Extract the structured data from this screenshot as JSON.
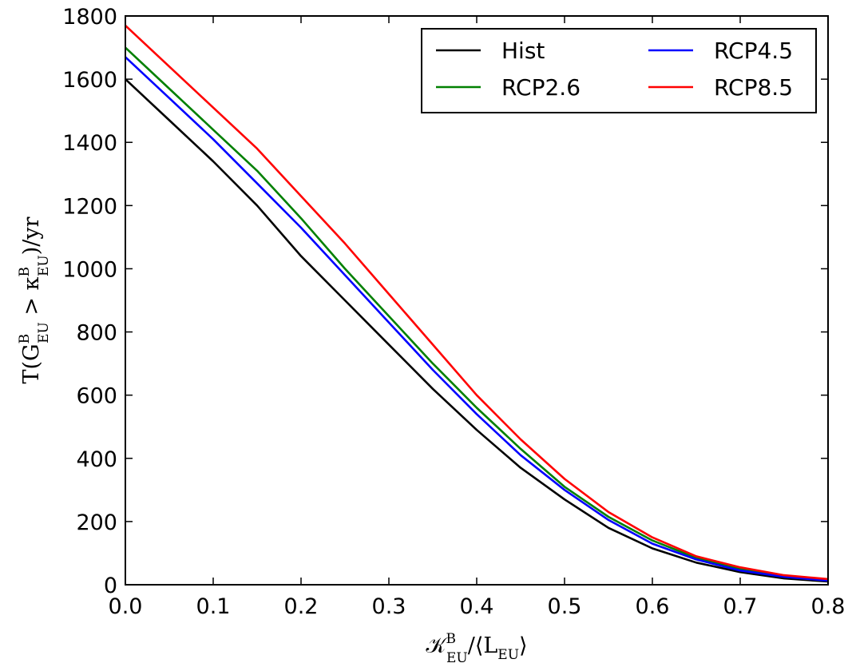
{
  "chart_data": {
    "type": "line",
    "title": "",
    "xlabel": {
      "base": "𝒦",
      "sup": "B",
      "sub": "EU",
      "rest": "/⟨L",
      "rest_sub": "EU",
      "close": "⟩"
    },
    "ylabel": {
      "p1": "T(G",
      "p1_sup": "B",
      "p1_sub": "EU",
      "p2": " > κ",
      "p2_sup": "B",
      "p2_sub": "EU",
      "p3": ")/yr"
    },
    "xlim": [
      0.0,
      0.8
    ],
    "ylim": [
      0,
      1800
    ],
    "x_ticks": [
      0.0,
      0.1,
      0.2,
      0.3,
      0.4,
      0.5,
      0.6,
      0.7,
      0.8
    ],
    "x_tick_labels": [
      "0.0",
      "0.1",
      "0.2",
      "0.3",
      "0.4",
      "0.5",
      "0.6",
      "0.7",
      "0.8"
    ],
    "y_ticks": [
      0,
      200,
      400,
      600,
      800,
      1000,
      1200,
      1400,
      1600,
      1800
    ],
    "y_tick_labels": [
      "0",
      "200",
      "400",
      "600",
      "800",
      "1000",
      "1200",
      "1400",
      "1600",
      "1800"
    ],
    "grid": false,
    "legend_position": "top-right",
    "legend_columns": 2,
    "x": [
      0.0,
      0.05,
      0.1,
      0.15,
      0.2,
      0.25,
      0.3,
      0.35,
      0.4,
      0.45,
      0.5,
      0.55,
      0.6,
      0.65,
      0.7,
      0.75,
      0.8
    ],
    "series": [
      {
        "name": "Hist",
        "color": "#000000",
        "values": [
          1600,
          1470,
          1340,
          1200,
          1040,
          900,
          760,
          620,
          490,
          370,
          270,
          180,
          115,
          70,
          40,
          20,
          10
        ]
      },
      {
        "name": "RCP2.6",
        "color": "#008000",
        "values": [
          1700,
          1570,
          1440,
          1310,
          1160,
          1000,
          850,
          700,
          560,
          430,
          310,
          215,
          140,
          85,
          50,
          28,
          15
        ]
      },
      {
        "name": "RCP4.5",
        "color": "#0000ff",
        "values": [
          1670,
          1540,
          1410,
          1270,
          1130,
          980,
          830,
          680,
          540,
          410,
          300,
          205,
          130,
          80,
          45,
          25,
          13
        ]
      },
      {
        "name": "RCP8.5",
        "color": "#ff0000",
        "values": [
          1770,
          1640,
          1510,
          1380,
          1230,
          1080,
          920,
          760,
          600,
          460,
          335,
          230,
          150,
          90,
          55,
          30,
          18
        ]
      }
    ]
  }
}
